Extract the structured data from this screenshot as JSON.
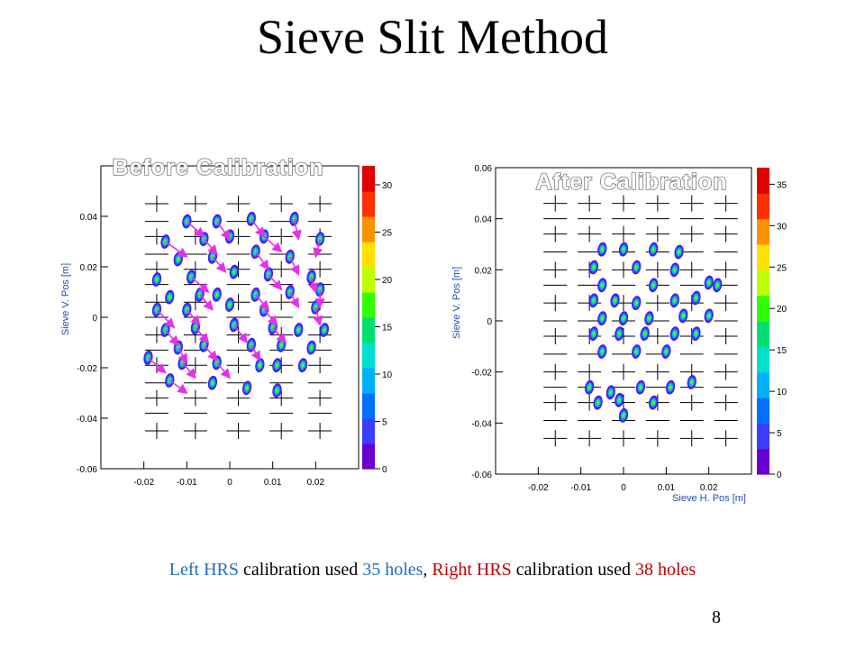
{
  "title": "Sieve Slit Method",
  "chart_data": [
    {
      "type": "heatmap",
      "label": "Before Calibration",
      "xlabel": "",
      "ylabel": "Sieve V. Pos [m]",
      "xlim": [
        -0.03,
        0.03
      ],
      "ylim": [
        -0.06,
        0.06
      ],
      "x_ticks": [
        "-0.02",
        "-0.01",
        "0",
        "0.01",
        "0.02"
      ],
      "y_ticks": [
        "0.04",
        "0.02",
        "0",
        "-0.02",
        "-0.04",
        "-0.06"
      ],
      "colorbar_max": 32,
      "colorbar_ticks": [
        "30",
        "25",
        "20",
        "15",
        "10",
        "5",
        "0"
      ],
      "arrow_color": "#e830e8",
      "grid_x": [
        -0.017,
        -0.008,
        0.002,
        0.012,
        0.021
      ],
      "grid_y": [
        0.045,
        0.038,
        0.032,
        0.025,
        0.019,
        0.013,
        0.006,
        0.0,
        -0.007,
        -0.013,
        -0.019,
        -0.026,
        -0.032,
        -0.038,
        -0.045
      ],
      "spots": [
        [
          -0.01,
          0.038
        ],
        [
          -0.003,
          0.038
        ],
        [
          0.005,
          0.039
        ],
        [
          0.015,
          0.039
        ],
        [
          -0.015,
          0.03
        ],
        [
          -0.006,
          0.031
        ],
        [
          0.0,
          0.032
        ],
        [
          0.008,
          0.032
        ],
        [
          0.021,
          0.031
        ],
        [
          -0.012,
          0.023
        ],
        [
          -0.004,
          0.024
        ],
        [
          0.006,
          0.026
        ],
        [
          0.014,
          0.024
        ],
        [
          -0.017,
          0.015
        ],
        [
          -0.009,
          0.016
        ],
        [
          0.001,
          0.018
        ],
        [
          0.009,
          0.017
        ],
        [
          0.019,
          0.016
        ],
        [
          -0.014,
          0.008
        ],
        [
          -0.007,
          0.009
        ],
        [
          -0.003,
          0.009
        ],
        [
          0.006,
          0.009
        ],
        [
          0.014,
          0.01
        ],
        [
          0.021,
          0.011
        ],
        [
          -0.017,
          0.003
        ],
        [
          -0.01,
          0.003
        ],
        [
          0.0,
          0.005
        ],
        [
          0.008,
          0.003
        ],
        [
          0.02,
          0.004
        ],
        [
          -0.015,
          -0.005
        ],
        [
          -0.008,
          -0.004
        ],
        [
          0.001,
          -0.003
        ],
        [
          0.01,
          -0.004
        ],
        [
          0.016,
          -0.005
        ],
        [
          0.022,
          -0.005
        ],
        [
          -0.012,
          -0.012
        ],
        [
          -0.006,
          -0.011
        ],
        [
          0.005,
          -0.011
        ],
        [
          0.012,
          -0.011
        ],
        [
          0.019,
          -0.012
        ],
        [
          -0.019,
          -0.016
        ],
        [
          -0.011,
          -0.018
        ],
        [
          -0.003,
          -0.018
        ],
        [
          0.007,
          -0.019
        ],
        [
          0.011,
          -0.019
        ],
        [
          0.017,
          -0.019
        ],
        [
          -0.014,
          -0.025
        ],
        [
          -0.004,
          -0.026
        ],
        [
          0.004,
          -0.028
        ],
        [
          0.011,
          -0.029
        ]
      ],
      "arrows": [
        [
          -0.01,
          0.038,
          -0.006,
          0.032
        ],
        [
          -0.003,
          0.038,
          0.0,
          0.031
        ],
        [
          0.005,
          0.039,
          0.008,
          0.032
        ],
        [
          -0.015,
          0.03,
          -0.01,
          0.024
        ],
        [
          -0.006,
          0.031,
          -0.003,
          0.025
        ],
        [
          0.008,
          0.032,
          0.012,
          0.026
        ],
        [
          0.015,
          0.039,
          0.016,
          0.031
        ],
        [
          0.021,
          0.031,
          0.02,
          0.024
        ],
        [
          -0.004,
          0.024,
          -0.001,
          0.018
        ],
        [
          0.006,
          0.026,
          0.009,
          0.019
        ],
        [
          0.014,
          0.024,
          0.016,
          0.017
        ],
        [
          -0.009,
          0.016,
          -0.005,
          0.01
        ],
        [
          0.009,
          0.017,
          0.012,
          0.011
        ],
        [
          0.019,
          0.016,
          0.02,
          0.01
        ],
        [
          0.014,
          0.01,
          0.016,
          0.004
        ],
        [
          0.021,
          0.011,
          0.021,
          0.004
        ],
        [
          0.02,
          0.004,
          0.021,
          -0.003
        ],
        [
          -0.007,
          0.009,
          -0.004,
          0.003
        ],
        [
          0.006,
          0.009,
          0.009,
          0.003
        ],
        [
          -0.01,
          0.003,
          -0.007,
          -0.003
        ],
        [
          0.008,
          0.003,
          0.011,
          -0.003
        ],
        [
          -0.017,
          0.003,
          -0.013,
          -0.004
        ],
        [
          -0.008,
          -0.004,
          -0.005,
          -0.01
        ],
        [
          0.001,
          -0.003,
          0.004,
          -0.01
        ],
        [
          0.01,
          -0.004,
          0.013,
          -0.01
        ],
        [
          -0.015,
          -0.005,
          -0.012,
          -0.011
        ],
        [
          -0.006,
          -0.011,
          -0.003,
          -0.017
        ],
        [
          0.005,
          -0.011,
          0.007,
          -0.017
        ],
        [
          -0.012,
          -0.012,
          -0.01,
          -0.018
        ],
        [
          -0.011,
          -0.018,
          -0.008,
          -0.024
        ],
        [
          -0.003,
          -0.018,
          0.0,
          -0.024
        ],
        [
          -0.019,
          -0.016,
          -0.015,
          -0.022
        ],
        [
          -0.014,
          -0.025,
          -0.01,
          -0.03
        ]
      ]
    },
    {
      "type": "heatmap",
      "label": "After Calibration",
      "xlabel": "Sieve H. Pos [m]",
      "ylabel": "Sieve V. Pos [m]",
      "xlim": [
        -0.03,
        0.03
      ],
      "ylim": [
        -0.06,
        0.06
      ],
      "x_ticks": [
        "-0.02",
        "-0.01",
        "0",
        "0.01",
        "0.02"
      ],
      "y_ticks": [
        "0.06",
        "0.04",
        "0.02",
        "0",
        "-0.02",
        "-0.04",
        "-0.06"
      ],
      "colorbar_max": 37,
      "colorbar_ticks": [
        "35",
        "30",
        "25",
        "20",
        "15",
        "10",
        "5",
        "0"
      ],
      "grid_x": [
        -0.016,
        -0.008,
        0.0,
        0.008,
        0.016,
        0.024
      ],
      "grid_y": [
        0.046,
        0.04,
        0.034,
        0.027,
        0.02,
        0.014,
        0.007,
        0.0,
        -0.006,
        -0.013,
        -0.02,
        -0.026,
        -0.032,
        -0.039,
        -0.046
      ],
      "spots": [
        [
          -0.005,
          0.028
        ],
        [
          0.0,
          0.028
        ],
        [
          0.007,
          0.028
        ],
        [
          0.013,
          0.027
        ],
        [
          -0.007,
          0.021
        ],
        [
          0.003,
          0.021
        ],
        [
          0.012,
          0.02
        ],
        [
          0.02,
          0.015
        ],
        [
          -0.005,
          0.014
        ],
        [
          0.007,
          0.014
        ],
        [
          0.017,
          0.009
        ],
        [
          0.022,
          0.014
        ],
        [
          -0.007,
          0.008
        ],
        [
          -0.002,
          0.008
        ],
        [
          0.003,
          0.007
        ],
        [
          0.012,
          0.008
        ],
        [
          0.02,
          0.002
        ],
        [
          -0.005,
          0.001
        ],
        [
          0.0,
          0.001
        ],
        [
          0.006,
          0.001
        ],
        [
          0.014,
          0.002
        ],
        [
          -0.007,
          -0.005
        ],
        [
          -0.001,
          -0.005
        ],
        [
          0.005,
          -0.005
        ],
        [
          0.012,
          -0.005
        ],
        [
          0.017,
          -0.005
        ],
        [
          -0.005,
          -0.012
        ],
        [
          0.003,
          -0.012
        ],
        [
          0.01,
          -0.012
        ],
        [
          -0.008,
          -0.026
        ],
        [
          -0.003,
          -0.028
        ],
        [
          0.004,
          -0.026
        ],
        [
          0.011,
          -0.026
        ],
        [
          0.016,
          -0.024
        ],
        [
          -0.006,
          -0.032
        ],
        [
          -0.001,
          -0.031
        ],
        [
          0.007,
          -0.032
        ],
        [
          0.0,
          -0.037
        ]
      ]
    }
  ],
  "caption": {
    "part1": "Left HRS",
    "part2": " calibration used ",
    "part3": "35 holes",
    "part4": ", ",
    "part5": "Right HRS",
    "part6": " calibration used ",
    "part7": "38 holes",
    "color_left": "#1f6fc2",
    "color_right": "#c00000"
  },
  "page_number": "8"
}
